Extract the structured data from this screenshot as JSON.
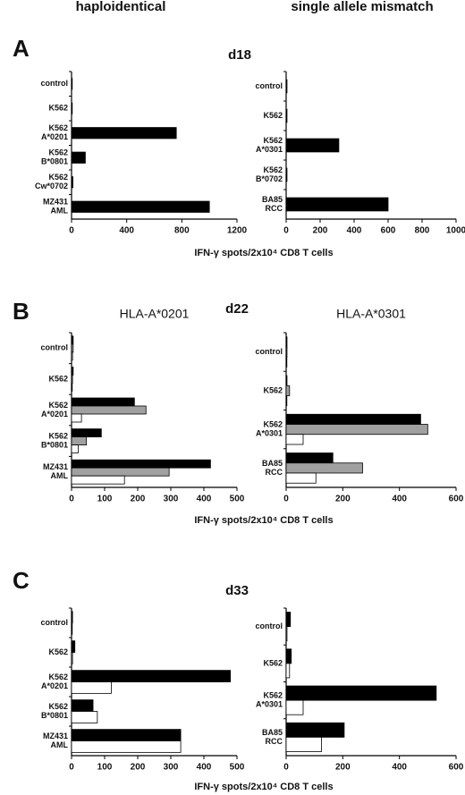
{
  "headers": [
    "haploidentical",
    "single allele mismatch"
  ],
  "panels": [
    {
      "label": "A",
      "day": "d18",
      "xlabel": "IFN-γ spots/2x10⁴ CD8 T cells"
    },
    {
      "label": "B",
      "day": "d22",
      "xlabel": "IFN-γ spots/2x10⁴ CD8 T cells"
    },
    {
      "label": "C",
      "day": "d33",
      "xlabel": "IFN-γ spots/2x10⁴ CD8 T cells"
    }
  ],
  "chart_data": [
    {
      "type": "bar",
      "orientation": "horizontal",
      "categories": [
        [
          "control"
        ],
        [
          "K562"
        ],
        [
          "K562",
          "A*0201"
        ],
        [
          "K562",
          "B*0801"
        ],
        [
          "K562",
          "Cw*0702"
        ],
        [
          "MZ431",
          "AML"
        ]
      ],
      "values": [
        5,
        5,
        760,
        100,
        10,
        1000
      ],
      "color": "#000000",
      "xlim": [
        0,
        1200
      ],
      "xticks": [
        0,
        400,
        800,
        1200
      ]
    },
    {
      "type": "bar",
      "orientation": "horizontal",
      "categories": [
        [
          "control"
        ],
        [
          "K562"
        ],
        [
          "K562",
          "A*0301"
        ],
        [
          "K562",
          "B*0702"
        ],
        [
          "BA85",
          "RCC"
        ]
      ],
      "values": [
        5,
        5,
        310,
        5,
        600
      ],
      "color": "#000000",
      "xlim": [
        0,
        1000
      ],
      "xticks": [
        0,
        200,
        400,
        600,
        800,
        1000
      ]
    },
    {
      "type": "bar",
      "orientation": "horizontal",
      "title": "HLA-A*0201",
      "categories": [
        [
          "control"
        ],
        [
          "K562"
        ],
        [
          "K562",
          "A*0201"
        ],
        [
          "K562",
          "B*0801"
        ],
        [
          "MZ431",
          "AML"
        ]
      ],
      "series": [
        {
          "color": "#000000",
          "values": [
            5,
            5,
            190,
            90,
            420
          ]
        },
        {
          "color": "#a0a0a0",
          "values": [
            5,
            3,
            225,
            45,
            295
          ]
        },
        {
          "color": "#ffffff",
          "values": [
            3,
            2,
            30,
            20,
            160
          ]
        }
      ],
      "xlim": [
        0,
        500
      ],
      "xticks": [
        0,
        100,
        200,
        300,
        400,
        500
      ]
    },
    {
      "type": "bar",
      "orientation": "horizontal",
      "title": "HLA-A*0301",
      "categories": [
        [
          "control"
        ],
        [
          "K562"
        ],
        [
          "K562",
          "A*0301"
        ],
        [
          "BA85",
          "RCC"
        ]
      ],
      "series": [
        {
          "color": "#000000",
          "values": [
            3,
            3,
            475,
            165
          ]
        },
        {
          "color": "#a0a0a0",
          "values": [
            3,
            12,
            500,
            270
          ]
        },
        {
          "color": "#ffffff",
          "values": [
            2,
            2,
            60,
            105
          ]
        }
      ],
      "xlim": [
        0,
        600
      ],
      "xticks": [
        0,
        200,
        400,
        600
      ]
    },
    {
      "type": "bar",
      "orientation": "horizontal",
      "categories": [
        [
          "control"
        ],
        [
          "K562"
        ],
        [
          "K562",
          "A*0201"
        ],
        [
          "K562",
          "B*0801"
        ],
        [
          "MZ431",
          "AML"
        ]
      ],
      "series": [
        {
          "color": "#000000",
          "values": [
            3,
            10,
            480,
            65,
            330
          ]
        },
        {
          "color": "#ffffff",
          "values": [
            2,
            3,
            120,
            78,
            330
          ]
        }
      ],
      "xlim": [
        0,
        500
      ],
      "xticks": [
        0,
        100,
        200,
        300,
        400,
        500
      ]
    },
    {
      "type": "bar",
      "orientation": "horizontal",
      "categories": [
        [
          "control"
        ],
        [
          "K562"
        ],
        [
          "K562",
          "A*0301"
        ],
        [
          "BA85",
          "RCC"
        ]
      ],
      "series": [
        {
          "color": "#000000",
          "values": [
            15,
            18,
            530,
            205
          ]
        },
        {
          "color": "#ffffff",
          "values": [
            3,
            12,
            60,
            125
          ]
        }
      ],
      "xlim": [
        0,
        600
      ],
      "xticks": [
        0,
        200,
        400,
        600
      ]
    }
  ]
}
